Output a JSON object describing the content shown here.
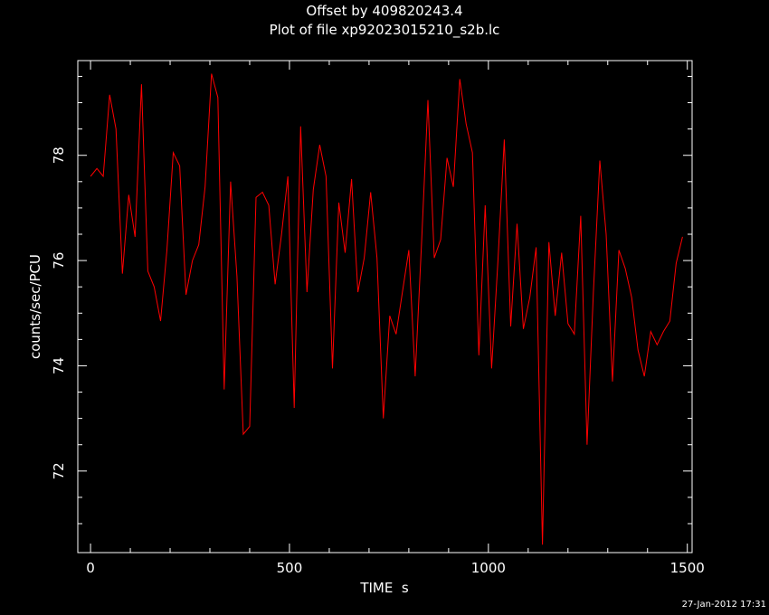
{
  "chart_data": {
    "type": "line",
    "title": "Offset by 409820243.4",
    "subtitle": "Plot of file xp92023015210_s2b.lc",
    "xlabel": "TIME  s",
    "ylabel": "counts/sec/PCU",
    "xlim": [
      -32,
      1512
    ],
    "ylim": [
      70.45,
      79.8
    ],
    "xticks": [
      0,
      500,
      1000,
      1500
    ],
    "yticks": [
      72,
      74,
      76,
      78
    ],
    "grid": false,
    "legend": "none",
    "series": [
      {
        "color": "#ff0000",
        "x": [
          0,
          16,
          32,
          48,
          64,
          80,
          96,
          112,
          128,
          144,
          160,
          176,
          192,
          208,
          224,
          240,
          256,
          272,
          288,
          304,
          320,
          336,
          352,
          368,
          384,
          400,
          416,
          432,
          448,
          464,
          480,
          496,
          512,
          528,
          544,
          560,
          576,
          592,
          608,
          624,
          640,
          656,
          672,
          688,
          704,
          720,
          736,
          752,
          768,
          784,
          800,
          816,
          832,
          848,
          864,
          880,
          896,
          912,
          928,
          944,
          960,
          976,
          992,
          1008,
          1024,
          1040,
          1056,
          1072,
          1088,
          1104,
          1120,
          1136,
          1152,
          1168,
          1184,
          1200,
          1216,
          1232,
          1248,
          1264,
          1280,
          1296,
          1312,
          1328,
          1344,
          1360,
          1376,
          1392,
          1408,
          1424,
          1440,
          1456,
          1472,
          1488
        ],
        "y": [
          77.6,
          77.75,
          77.6,
          79.15,
          78.5,
          75.75,
          77.25,
          76.45,
          79.35,
          75.8,
          75.5,
          74.85,
          76.2,
          78.05,
          77.8,
          75.35,
          76.0,
          76.3,
          77.4,
          79.55,
          79.1,
          73.55,
          77.5,
          75.7,
          72.7,
          72.85,
          77.2,
          77.3,
          77.05,
          75.55,
          76.5,
          77.6,
          73.2,
          78.55,
          75.4,
          77.35,
          78.2,
          77.6,
          73.95,
          77.1,
          76.15,
          77.55,
          75.4,
          76.05,
          77.3,
          76.05,
          73.0,
          74.95,
          74.6,
          75.4,
          76.2,
          73.8,
          76.35,
          79.05,
          76.05,
          76.4,
          77.95,
          77.4,
          79.45,
          78.6,
          78.05,
          74.2,
          77.05,
          73.95,
          76.0,
          78.3,
          74.75,
          76.7,
          74.7,
          75.3,
          76.25,
          70.6,
          76.35,
          74.95,
          76.15,
          74.8,
          74.6,
          76.85,
          72.5,
          75.4,
          77.9,
          76.5,
          73.7,
          76.2,
          75.85,
          75.3,
          74.3,
          73.8,
          74.65,
          74.4,
          74.65,
          74.85,
          75.95,
          76.45
        ]
      }
    ]
  },
  "footer": {
    "timestamp": "27-Jan-2012 17:31"
  },
  "colors": {
    "background": "#000000",
    "foreground": "#ffffff",
    "series": "#ff0000"
  }
}
